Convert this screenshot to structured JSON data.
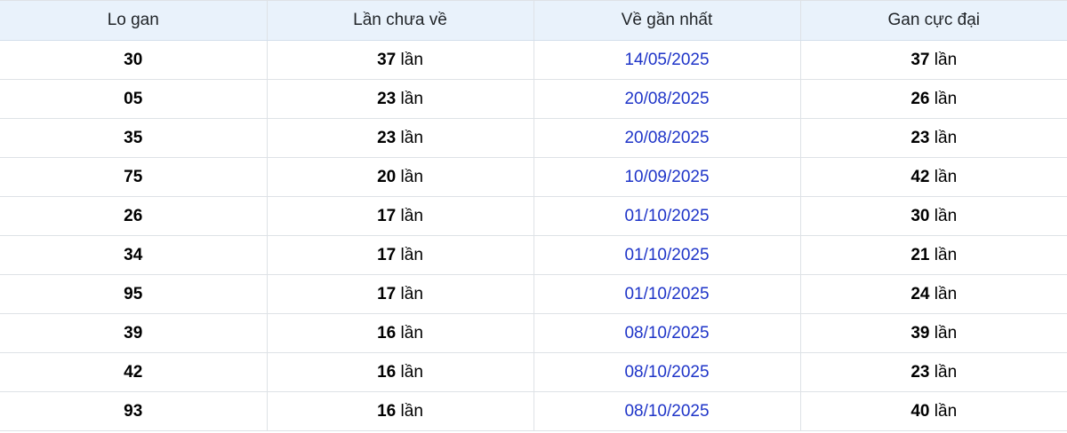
{
  "table": {
    "columns": [
      {
        "label": "Lo gan"
      },
      {
        "label": "Lần chưa về"
      },
      {
        "label": "Về gần nhất"
      },
      {
        "label": "Gan cực đại"
      }
    ],
    "count_suffix": "lần",
    "rows": [
      {
        "lo_gan": "30",
        "lan_chua_ve": "37",
        "ve_gan_nhat": "14/05/2025",
        "gan_cuc_dai": "37"
      },
      {
        "lo_gan": "05",
        "lan_chua_ve": "23",
        "ve_gan_nhat": "20/08/2025",
        "gan_cuc_dai": "26"
      },
      {
        "lo_gan": "35",
        "lan_chua_ve": "23",
        "ve_gan_nhat": "20/08/2025",
        "gan_cuc_dai": "23"
      },
      {
        "lo_gan": "75",
        "lan_chua_ve": "20",
        "ve_gan_nhat": "10/09/2025",
        "gan_cuc_dai": "42"
      },
      {
        "lo_gan": "26",
        "lan_chua_ve": "17",
        "ve_gan_nhat": "01/10/2025",
        "gan_cuc_dai": "30"
      },
      {
        "lo_gan": "34",
        "lan_chua_ve": "17",
        "ve_gan_nhat": "01/10/2025",
        "gan_cuc_dai": "21"
      },
      {
        "lo_gan": "95",
        "lan_chua_ve": "17",
        "ve_gan_nhat": "01/10/2025",
        "gan_cuc_dai": "24"
      },
      {
        "lo_gan": "39",
        "lan_chua_ve": "16",
        "ve_gan_nhat": "08/10/2025",
        "gan_cuc_dai": "39"
      },
      {
        "lo_gan": "42",
        "lan_chua_ve": "16",
        "ve_gan_nhat": "08/10/2025",
        "gan_cuc_dai": "23"
      },
      {
        "lo_gan": "93",
        "lan_chua_ve": "16",
        "ve_gan_nhat": "08/10/2025",
        "gan_cuc_dai": "40"
      }
    ]
  },
  "colors": {
    "header_bg": "#e9f2fb",
    "border": "#dee2e6",
    "link_blue": "#1e34c8",
    "header_text": "#212529",
    "number_text": "#000000"
  }
}
